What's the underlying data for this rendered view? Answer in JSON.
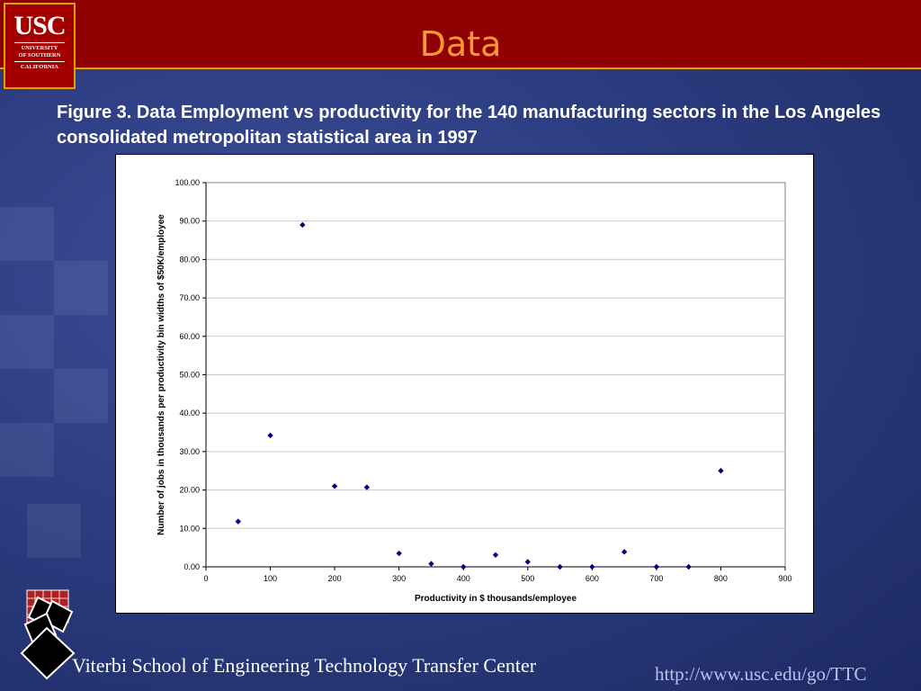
{
  "slide": {
    "title": "Data",
    "caption": "Figure 3.  Data   Employment vs productivity for the 140 manufacturing sectors in the Los Angeles consolidated metropolitan statistical area in 1997",
    "footer": "Viterbi School of Engineering Technology Transfer Center",
    "url": "http://www.usc.edu/go/TTC"
  },
  "logo": {
    "name": "USC",
    "lines": [
      "UNIVERSITY",
      "OF SOUTHERN",
      "CALIFORNIA"
    ]
  },
  "colors": {
    "header": "#8f0000",
    "title": "#ff9a33",
    "marker": "#000080",
    "background": "#2c3c80"
  },
  "chart_data": {
    "type": "scatter",
    "title": "",
    "xlabel": "Productivity in $ thousands/employee",
    "ylabel": "Number of jobs in thousands per productivity bin widths of $50K/employee",
    "xlim": [
      0,
      900
    ],
    "ylim": [
      0,
      100
    ],
    "xticks": [
      "0",
      "100",
      "200",
      "300",
      "400",
      "500",
      "600",
      "700",
      "800",
      "900"
    ],
    "yticks": [
      "0.00",
      "10.00",
      "20.00",
      "30.00",
      "40.00",
      "50.00",
      "60.00",
      "70.00",
      "80.00",
      "90.00",
      "100.00"
    ],
    "grid": "horizontal",
    "marker": "diamond",
    "points": [
      {
        "x": 50,
        "y": 11.8
      },
      {
        "x": 100,
        "y": 34.2
      },
      {
        "x": 150,
        "y": 89.0
      },
      {
        "x": 200,
        "y": 21.0
      },
      {
        "x": 250,
        "y": 20.7
      },
      {
        "x": 300,
        "y": 3.5
      },
      {
        "x": 350,
        "y": 0.8
      },
      {
        "x": 400,
        "y": 0.0
      },
      {
        "x": 450,
        "y": 3.1
      },
      {
        "x": 500,
        "y": 1.3
      },
      {
        "x": 550,
        "y": 0.0
      },
      {
        "x": 600,
        "y": 0.0
      },
      {
        "x": 650,
        "y": 3.9
      },
      {
        "x": 700,
        "y": 0.0
      },
      {
        "x": 750,
        "y": 0.0
      },
      {
        "x": 800,
        "y": 25.0
      }
    ]
  }
}
